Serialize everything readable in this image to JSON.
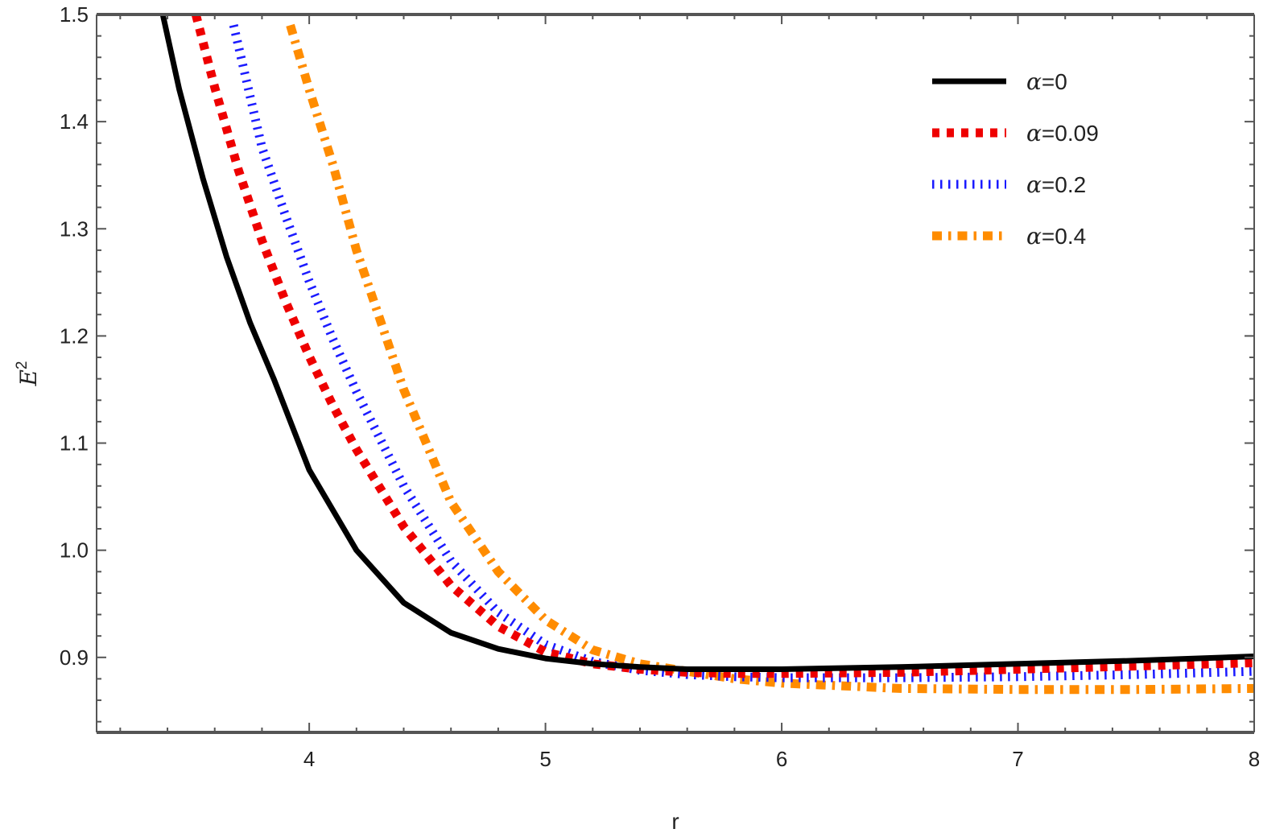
{
  "chart_data": {
    "type": "line",
    "xlabel": "r",
    "ylabel_base": "E",
    "ylabel_sup": "2",
    "xlim": [
      3.1,
      8.0
    ],
    "ylim": [
      0.83,
      1.5
    ],
    "xticks": [
      4,
      5,
      6,
      7,
      8
    ],
    "xtick_labels": [
      "4",
      "5",
      "6",
      "7",
      "8"
    ],
    "yticks": [
      0.9,
      1.0,
      1.1,
      1.2,
      1.3,
      1.4,
      1.5
    ],
    "ytick_labels": [
      "0.9",
      "1.0",
      "1.1",
      "1.2",
      "1.3",
      "1.4",
      "1.5"
    ],
    "grid": false,
    "legend_position": "top-right",
    "series": [
      {
        "name_symbol": "α",
        "name_rest": "=0",
        "color": "#000000",
        "style": "solid",
        "x": [
          3.38,
          3.45,
          3.55,
          3.65,
          3.75,
          3.85,
          4.0,
          4.2,
          4.4,
          4.6,
          4.8,
          5.0,
          5.2,
          5.4,
          5.6,
          5.8,
          6.0,
          6.5,
          7.0,
          7.5,
          8.0
        ],
        "y": [
          1.5,
          1.43,
          1.347,
          1.274,
          1.212,
          1.16,
          1.075,
          1.0,
          0.951,
          0.923,
          0.908,
          0.899,
          0.894,
          0.891,
          0.889,
          0.889,
          0.889,
          0.891,
          0.894,
          0.897,
          0.901
        ]
      },
      {
        "name_symbol": "α",
        "name_rest": "=0.09",
        "color": "#ee0000",
        "style": "dotted",
        "x": [
          3.52,
          3.6,
          3.7,
          3.8,
          3.9,
          4.0,
          4.1,
          4.2,
          4.4,
          4.6,
          4.8,
          5.0,
          5.2,
          5.4,
          5.6,
          5.8,
          6.0,
          6.5,
          7.0,
          7.5,
          8.0
        ],
        "y": [
          1.5,
          1.432,
          1.355,
          1.289,
          1.232,
          1.181,
          1.135,
          1.094,
          1.022,
          0.967,
          0.929,
          0.905,
          0.894,
          0.889,
          0.886,
          0.885,
          0.885,
          0.886,
          0.889,
          0.892,
          0.895
        ]
      },
      {
        "name_symbol": "α",
        "name_rest": "=0.2",
        "color": "#1a1aff",
        "style": "dotted-thin",
        "x": [
          3.68,
          3.8,
          3.9,
          4.0,
          4.1,
          4.2,
          4.4,
          4.6,
          4.8,
          5.0,
          5.2,
          5.4,
          5.6,
          5.8,
          6.0,
          6.5,
          7.0,
          7.5,
          8.0
        ],
        "y": [
          1.49,
          1.376,
          1.312,
          1.251,
          1.197,
          1.148,
          1.06,
          0.99,
          0.942,
          0.912,
          0.896,
          0.888,
          0.884,
          0.882,
          0.881,
          0.881,
          0.882,
          0.884,
          0.887
        ]
      },
      {
        "name_symbol": "α",
        "name_rest": "=0.4",
        "color": "#ff8c00",
        "style": "dashdot",
        "x": [
          3.92,
          4.0,
          4.1,
          4.2,
          4.3,
          4.4,
          4.6,
          4.8,
          5.0,
          5.2,
          5.4,
          5.6,
          5.8,
          6.0,
          6.5,
          7.0,
          7.5,
          8.0
        ],
        "y": [
          1.49,
          1.43,
          1.36,
          1.28,
          1.215,
          1.15,
          1.045,
          0.98,
          0.935,
          0.907,
          0.894,
          0.887,
          0.88,
          0.876,
          0.871,
          0.87,
          0.87,
          0.871
        ]
      }
    ]
  }
}
